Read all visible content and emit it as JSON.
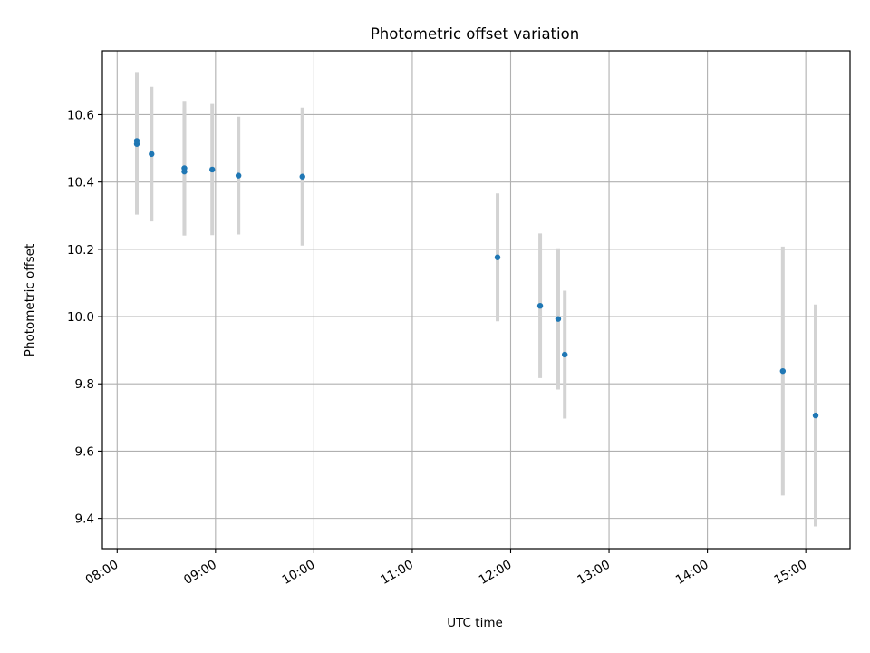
{
  "chart_data": {
    "type": "scatter",
    "title": "Photometric offset variation",
    "xlabel": "UTC time",
    "ylabel": "Photometric offset",
    "x_axis_kind": "time-of-day",
    "xlim": [
      "07:51",
      "15:27"
    ],
    "ylim": [
      9.31,
      10.79
    ],
    "x_ticks": [
      "08:00",
      "09:00",
      "10:00",
      "11:00",
      "12:00",
      "13:00",
      "14:00",
      "15:00"
    ],
    "y_ticks": [
      "9.4",
      "9.6",
      "9.8",
      "10.0",
      "10.2",
      "10.4",
      "10.6"
    ],
    "grid": true,
    "points": [
      {
        "time": "08:12",
        "y": 10.513,
        "err": 0.21
      },
      {
        "time": "08:12",
        "y": 10.522,
        "err": 0.205
      },
      {
        "time": "08:21",
        "y": 10.483,
        "err": 0.2
      },
      {
        "time": "08:41",
        "y": 10.441,
        "err": 0.2
      },
      {
        "time": "08:41",
        "y": 10.431,
        "err": 0.19
      },
      {
        "time": "08:58",
        "y": 10.437,
        "err": 0.195
      },
      {
        "time": "09:14",
        "y": 10.419,
        "err": 0.175
      },
      {
        "time": "09:53",
        "y": 10.416,
        "err": 0.205
      },
      {
        "time": "11:52",
        "y": 10.176,
        "err": 0.19
      },
      {
        "time": "12:18",
        "y": 10.032,
        "err": 0.215
      },
      {
        "time": "12:29",
        "y": 9.993,
        "err": 0.21
      },
      {
        "time": "12:33",
        "y": 9.887,
        "err": 0.19
      },
      {
        "time": "14:46",
        "y": 9.838,
        "err": 0.37
      },
      {
        "time": "15:06",
        "y": 9.706,
        "err": 0.33
      }
    ],
    "colors": {
      "point": "#1f77b4",
      "errorbar": "#d3d3d3",
      "grid": "#b0b0b0"
    }
  }
}
